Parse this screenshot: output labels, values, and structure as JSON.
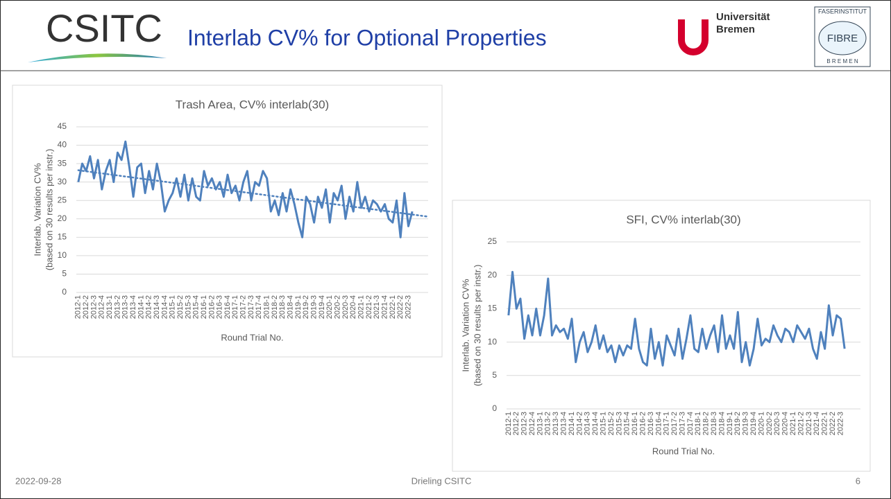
{
  "header": {
    "logo": "CSITC",
    "title": "Interlab CV% for Optional Properties",
    "uni_line1": "Universität",
    "uni_line2": "Bremen",
    "fibre_top": "FASERINSTITUT",
    "fibre_mid": "FIBRE",
    "fibre_bottom": "B R E M E N"
  },
  "footer": {
    "date": "2022-09-28",
    "author": "Drieling CSITC",
    "page": "6"
  },
  "chart_data": [
    {
      "type": "line",
      "title": "Trash Area,  CV% interlab(30)",
      "x_label": "Round Trial No.",
      "y_label": [
        "Interlab. Variation CV%",
        "(based on 30 results per instr.)"
      ],
      "categories": [
        "2012-1",
        null,
        "2012-2",
        null,
        "2012-3",
        null,
        "2012-4",
        null,
        "2013-1",
        null,
        "2013-2",
        null,
        "2013-3",
        null,
        "2013-4",
        null,
        "2014-1",
        null,
        "2014-2",
        null,
        "2014-3",
        null,
        "2014-4",
        null,
        "2015-1",
        null,
        "2015-2",
        null,
        "2015-3",
        null,
        "2015-4",
        null,
        "2016-1",
        null,
        "2016-2",
        null,
        "2016-3",
        null,
        "2016-4",
        null,
        "2017-1",
        null,
        "2017-2",
        null,
        "2017-3",
        null,
        "2017-4",
        null,
        "2018-1",
        null,
        "2018-2",
        null,
        "2018-3",
        null,
        "2018-4",
        null,
        "2019-1",
        null,
        "2019-2",
        null,
        "2019-3",
        null,
        "2019-4",
        null,
        "2020-1",
        null,
        "2020-2",
        null,
        "2020-3",
        null,
        "2020-4",
        null,
        "2021-1",
        null,
        "2021-2",
        null,
        "2021-3",
        null,
        "2021-4",
        null,
        "2022-1",
        null,
        "2022-2",
        null,
        "2022-3",
        null
      ],
      "series": [
        {
          "color": "#4f81bd",
          "values": [
            30,
            35,
            33,
            37,
            31,
            36,
            28,
            33,
            36,
            30,
            38,
            36,
            41,
            34,
            26,
            34,
            35,
            27,
            33,
            28,
            35,
            30,
            22,
            25,
            27,
            31,
            26,
            32,
            25,
            31,
            26,
            25,
            33,
            29,
            31,
            28,
            30,
            26,
            32,
            27,
            29,
            25,
            30,
            33,
            25,
            30,
            29,
            33,
            31,
            22,
            25,
            21,
            27,
            22,
            28,
            24,
            19,
            15,
            26,
            24,
            19,
            26,
            23,
            28,
            19,
            27,
            25,
            29,
            20,
            26,
            22,
            30,
            23,
            26,
            22,
            25,
            24,
            22,
            24,
            20,
            19,
            25,
            15,
            27,
            18,
            22
          ]
        }
      ],
      "trendline": {
        "start": 33.2,
        "end": 20.6
      },
      "ylim": [
        0,
        45
      ],
      "yticks": [
        0,
        5,
        10,
        15,
        20,
        25,
        30,
        35,
        40,
        45
      ],
      "grid": true
    },
    {
      "type": "line",
      "title": "SFI, CV% interlab(30)",
      "x_label": "Round Trial No.",
      "y_label": [
        "Interlab. Variation CV%",
        "(based on 30 results per instr.)"
      ],
      "categories": [
        "2012-1",
        null,
        "2012-2",
        null,
        "2012-3",
        null,
        "2012-4",
        null,
        "2013-1",
        null,
        "2013-2",
        null,
        "2013-3",
        null,
        "2013-4",
        null,
        "2014-1",
        null,
        "2014-2",
        null,
        "2014-3",
        null,
        "2014-4",
        null,
        "2015-1",
        null,
        "2015-2",
        null,
        "2015-3",
        null,
        "2015-4",
        null,
        "2016-1",
        null,
        "2016-2",
        null,
        "2016-3",
        null,
        "2016-4",
        null,
        "2017-1",
        null,
        "2017-2",
        null,
        "2017-3",
        null,
        "2017-4",
        null,
        "2018-1",
        null,
        "2018-2",
        null,
        "2018-3",
        null,
        "2018-4",
        null,
        "2019-1",
        null,
        "2019-2",
        null,
        "2019-3",
        null,
        "2019-4",
        null,
        "2020-1",
        null,
        "2020-2",
        null,
        "2020-3",
        null,
        "2020-4",
        null,
        "2021-1",
        null,
        "2021-2",
        null,
        "2021-3",
        null,
        "2021-4",
        null,
        "2022-1",
        null,
        "2022-2",
        null,
        "2022-3",
        null
      ],
      "series": [
        {
          "color": "#4f81bd",
          "values": [
            14,
            20.5,
            15,
            16.5,
            10.5,
            14,
            11,
            15,
            11,
            14,
            19.5,
            11,
            12.5,
            11.5,
            12,
            10.5,
            13.5,
            7,
            10,
            11.5,
            8.5,
            10,
            12.5,
            9,
            11,
            8.5,
            9.5,
            7,
            9.5,
            8,
            9.5,
            9,
            13.5,
            9,
            7,
            6.5,
            12,
            7.5,
            10,
            6.5,
            11,
            9.5,
            8,
            12,
            7.5,
            10.5,
            14,
            9,
            8.5,
            12,
            9,
            11,
            12.5,
            8.5,
            14,
            9,
            11,
            9,
            14.5,
            7,
            10,
            6.5,
            9,
            13.5,
            9.5,
            10.5,
            10,
            12.5,
            11,
            10,
            12,
            11.5,
            10,
            12.5,
            11.5,
            10.5,
            12,
            9,
            7.5,
            11.5,
            9,
            15.5,
            11,
            14,
            13.5,
            9
          ]
        }
      ],
      "ylim": [
        0,
        25
      ],
      "yticks": [
        0,
        5,
        10,
        15,
        20,
        25
      ],
      "grid": true
    }
  ]
}
